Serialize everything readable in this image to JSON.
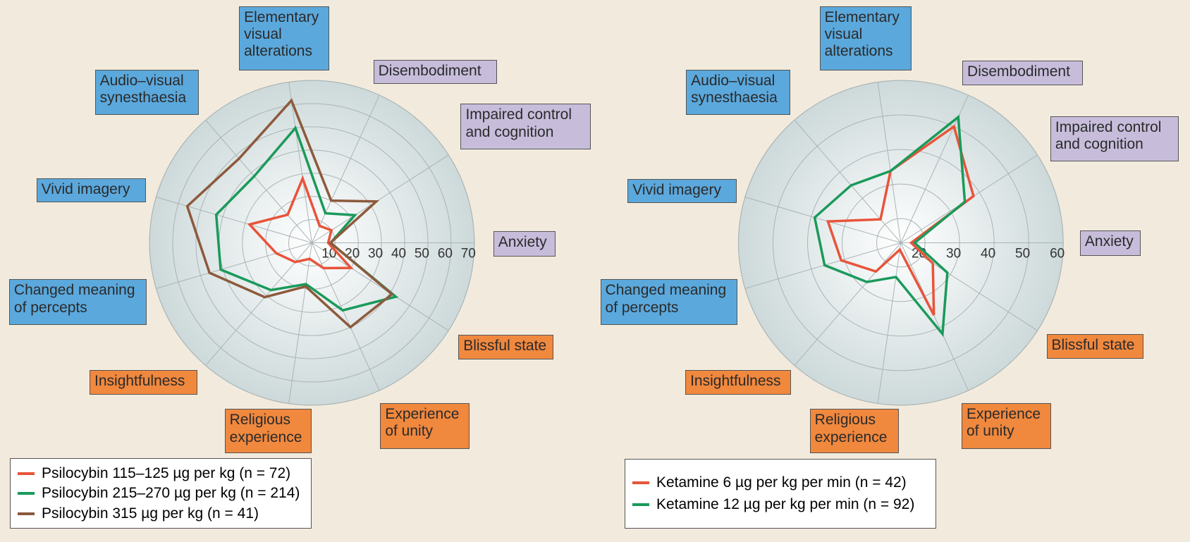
{
  "chart_data": [
    {
      "type": "radar",
      "categories": [
        "Anxiety",
        "Impaired control\nand cognition",
        "Disembodiment",
        "Elementary\nvisual\nalterations",
        "Audio–visual\nsynesthaesia",
        "Vivid imagery",
        "Changed meaning\nof percepts",
        "Insightfulness",
        "Religious\nexperience",
        "Experience\nof unity",
        "Blissful state"
      ],
      "category_colors": [
        "#c7bddb",
        "#c7bddb",
        "#c7bddb",
        "#5ba8dc",
        "#5ba8dc",
        "#5ba8dc",
        "#5ba8dc",
        "#f0883e",
        "#f0883e",
        "#f0883e",
        "#f0883e"
      ],
      "ylim": [
        0,
        70
      ],
      "yticks": [
        10,
        20,
        30,
        40,
        50,
        60,
        70
      ],
      "series": [
        {
          "name": "Psilocybin 115–125 µg per kg (n = 72)",
          "color": "#e8543a",
          "values": [
            7,
            10,
            8,
            28,
            16,
            28,
            16,
            11,
            7,
            12,
            20
          ]
        },
        {
          "name": "Psilocybin 215–270 µg per kg (n = 214)",
          "color": "#1a9a5a",
          "values": [
            8,
            22,
            14,
            50,
            38,
            43,
            41,
            27,
            18,
            32,
            43
          ]
        },
        {
          "name": "Psilocybin 315 µg per kg (n = 41)",
          "color": "#8c5a3c",
          "values": [
            8,
            33,
            20,
            62,
            48,
            56,
            46,
            31,
            19,
            40,
            41
          ]
        }
      ]
    },
    {
      "type": "radar",
      "categories": [
        "Anxiety",
        "Impaired control\nand cognition",
        "Disembodiment",
        "Elementary\nvisual\nalterations",
        "Audio–visual\nsynesthaesia",
        "Vivid imagery",
        "Changed meaning\nof percepts",
        "Insightfulness",
        "Religious\nexperience",
        "Experience\nof unity",
        "Blissful state"
      ],
      "category_colors": [
        "#c7bddb",
        "#c7bddb",
        "#c7bddb",
        "#5ba8dc",
        "#5ba8dc",
        "#5ba8dc",
        "#5ba8dc",
        "#f0883e",
        "#f0883e",
        "#f0883e",
        "#f0883e"
      ],
      "ylim": [
        13,
        60
      ],
      "yticks": [
        20,
        30,
        40,
        50,
        60
      ],
      "series": [
        {
          "name": "Ketamine 6 µg per kg per min (n = 42)",
          "color": "#e8543a",
          "values": [
            16,
            38,
            50,
            34,
            22,
            35,
            31,
            24,
            15,
            36,
            24
          ]
        },
        {
          "name": "Ketamine 12 µg per kg per min (n = 92)",
          "color": "#1a9a5a",
          "values": [
            17,
            35,
            53,
            34,
            35,
            39,
            36,
            28,
            23,
            42,
            29
          ]
        }
      ]
    }
  ]
}
